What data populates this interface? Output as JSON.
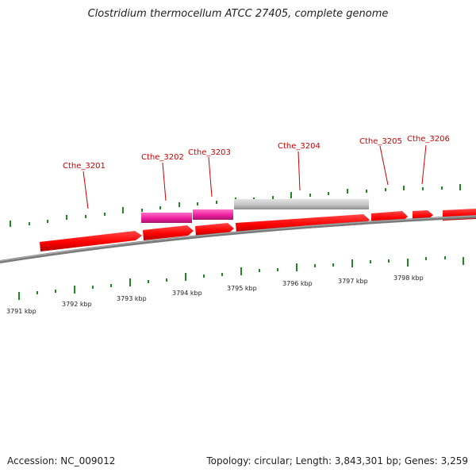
{
  "title": "Clostridium thermocellum ATCC 27405, complete genome",
  "footer": {
    "accession": "Accession: NC_009012",
    "summary": "Topology: circular; Length: 3,843,301 bp; Genes: 3,259"
  },
  "genes": [
    {
      "label": "Cthe_3201"
    },
    {
      "label": "Cthe_3202"
    },
    {
      "label": "Cthe_3203"
    },
    {
      "label": "Cthe_3204"
    },
    {
      "label": "Cthe_3205"
    },
    {
      "label": "Cthe_3206"
    }
  ],
  "scale_labels": [
    "3791 kbp",
    "3792 kbp",
    "3793 kbp",
    "3794 kbp",
    "3795 kbp",
    "3796 kbp",
    "3797 kbp",
    "3798 kbp"
  ],
  "colors": {
    "cds": "#ff0000",
    "cds_dark": "#c00000",
    "highlight": "#ee1fa0",
    "pseudo": "#c4c4c4",
    "tick": "#1f8a1f",
    "backbone": "#808080",
    "label": "#cc0000"
  }
}
